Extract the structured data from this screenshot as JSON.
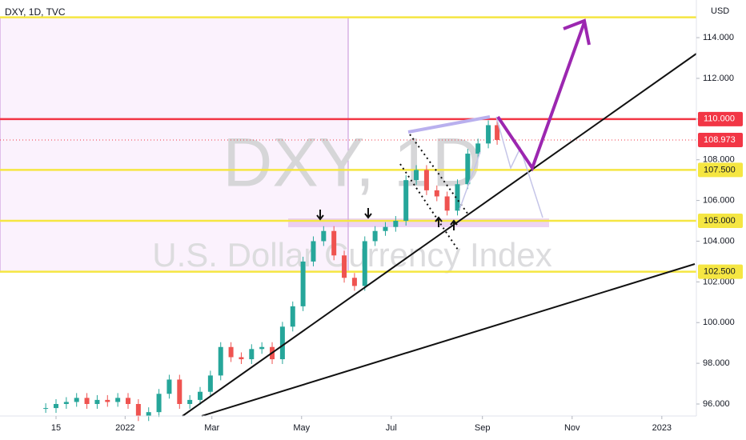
{
  "chart_data": {
    "type": "candlestick",
    "symbol_label": "DXY, 1D, TVC",
    "currency": "USD",
    "watermark": "DXY, 1D",
    "watermark_subtitle": "U.S. Dollar Currency Index",
    "up_color": "#26a69a",
    "down_color": "#ef5350",
    "x": [
      -7,
      0,
      7,
      14,
      21,
      28,
      35,
      42,
      49,
      56,
      63,
      70,
      77,
      84,
      91,
      98,
      105,
      112,
      119,
      126,
      133,
      140,
      147,
      154,
      161,
      168,
      175,
      182,
      189,
      196,
      203,
      210,
      217,
      224,
      231,
      238,
      245,
      252,
      259,
      266,
      273,
      280,
      287,
      294,
      300
    ],
    "values": [
      95.8,
      96.0,
      96.1,
      96.3,
      96.0,
      96.2,
      96.1,
      96.3,
      96.0,
      95.4,
      95.6,
      96.5,
      97.2,
      96.0,
      96.2,
      96.6,
      97.4,
      98.8,
      98.3,
      98.2,
      98.7,
      98.8,
      98.2,
      99.8,
      100.8,
      103.0,
      104.0,
      104.5,
      103.3,
      102.2,
      101.8,
      104.0,
      104.5,
      104.7,
      105.0,
      107.0,
      107.5,
      106.5,
      106.2,
      105.5,
      106.8,
      108.3,
      108.8,
      109.7,
      108.973
    ],
    "xlim": [
      -38.1,
      435.5
    ],
    "ylim": [
      95.41,
      115.85
    ],
    "xticks": [
      {
        "value": 0,
        "label": "15"
      },
      {
        "value": 47,
        "label": "2022"
      },
      {
        "value": 106,
        "label": "Mar"
      },
      {
        "value": 167,
        "label": "May"
      },
      {
        "value": 228,
        "label": "Jul"
      },
      {
        "value": 290,
        "label": "Sep"
      },
      {
        "value": 351,
        "label": "Nov"
      },
      {
        "value": 412,
        "label": "2023"
      }
    ],
    "yticks": [
      {
        "value": 96,
        "label": "96.000"
      },
      {
        "value": 98,
        "label": "98.000"
      },
      {
        "value": 100,
        "label": "100.000"
      },
      {
        "value": 102,
        "label": "102.000"
      },
      {
        "value": 104,
        "label": "104.000"
      },
      {
        "value": 106,
        "label": "106.000"
      },
      {
        "value": 108,
        "label": "108.000"
      },
      {
        "value": 110,
        "label": "110.000"
      },
      {
        "value": 112,
        "label": "112.000"
      },
      {
        "value": 114,
        "label": "114.000"
      }
    ],
    "levels": [
      {
        "value": 115,
        "color": "#f5e642"
      },
      {
        "value": 110,
        "label": "110.000",
        "color": "#f23645"
      },
      {
        "value": 107.5,
        "label": "107.500",
        "color": "#f5e642"
      },
      {
        "value": 105,
        "label": "105.000",
        "color": "#f5e642"
      },
      {
        "value": 102.5,
        "label": "102.500",
        "color": "#f5e642"
      }
    ],
    "last_price": {
      "value": 108.973,
      "color": "#f23645"
    }
  }
}
